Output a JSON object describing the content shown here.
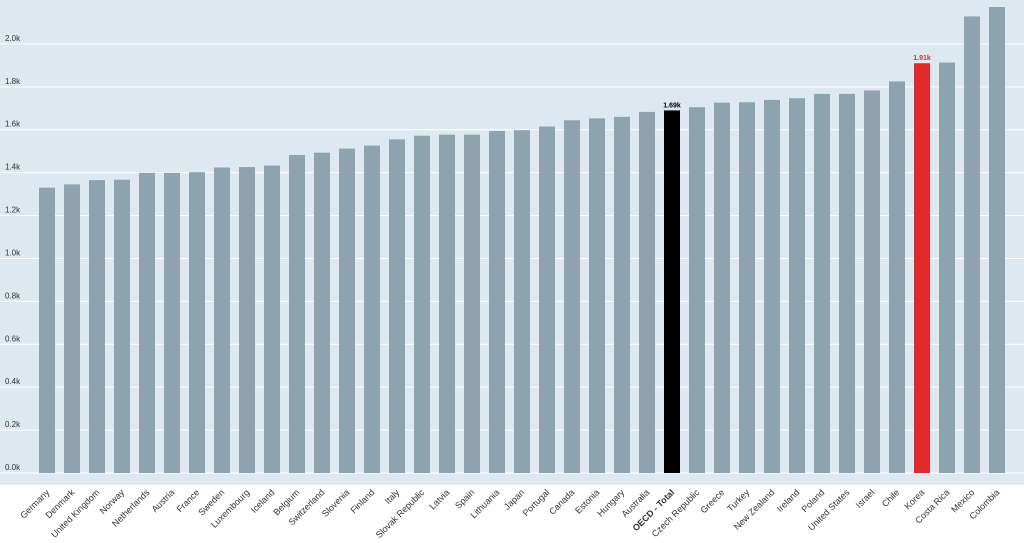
{
  "chart_data": {
    "type": "bar",
    "categories": [
      "Germany",
      "Denmark",
      "United Kingdom",
      "Norway",
      "Netherlands",
      "Austria",
      "France",
      "Sweden",
      "Luxembourg",
      "Iceland",
      "Belgium",
      "Switzerland",
      "Slovenia",
      "Finland",
      "Italy",
      "Slovak Republic",
      "Latvia",
      "Spain",
      "Lithuania",
      "Japan",
      "Portugal",
      "Canada",
      "Estonia",
      "Hungary",
      "Australia",
      "OECD - Total",
      "Czech Republic",
      "Greece",
      "Turkey",
      "New Zealand",
      "Ireland",
      "Poland",
      "United States",
      "Israel",
      "Chile",
      "Korea",
      "Costa Rica",
      "Mexico",
      "Colombia"
    ],
    "values": [
      1330,
      1345,
      1365,
      1367,
      1399,
      1399,
      1402,
      1424,
      1426,
      1433,
      1482,
      1493,
      1512,
      1526,
      1555,
      1572,
      1577,
      1577,
      1594,
      1598,
      1615,
      1644,
      1653,
      1660,
      1683,
      1690,
      1705,
      1726,
      1728,
      1739,
      1747,
      1767,
      1767,
      1783,
      1825,
      1910,
      1913,
      2128,
      2172
    ],
    "ylim": [
      0,
      2200
    ],
    "yticks": [
      0,
      200,
      400,
      600,
      800,
      1000,
      1200,
      1400,
      1600,
      1800,
      2000
    ],
    "ytick_labels": [
      "0.0k",
      "0.2k",
      "0.4k",
      "0.6k",
      "0.8k",
      "1.0k",
      "1.2k",
      "1.4k",
      "1.6k",
      "1.8k",
      "2.0k"
    ],
    "grid": true,
    "highlights": [
      {
        "category": "OECD - Total",
        "label": "1.69k",
        "color": "#000000"
      },
      {
        "category": "Korea",
        "label": "1.91k",
        "color": "#e02a2a"
      }
    ],
    "colors": {
      "bar": "#8fa3af",
      "background": "#dde8f0",
      "grid": "#ffffff",
      "highlight_oecd": "#000000",
      "highlight_korea": "#e02a2a"
    }
  }
}
